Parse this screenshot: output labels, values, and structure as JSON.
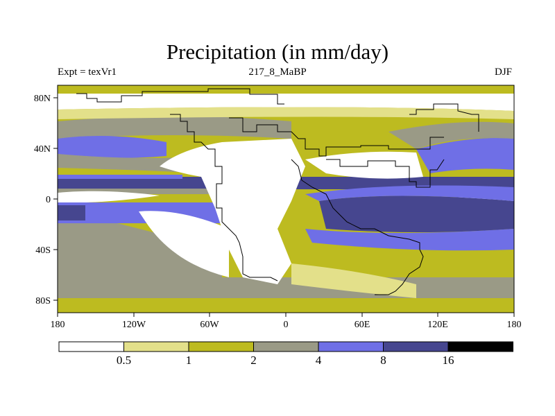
{
  "title": "Precipitation (in mm/day)",
  "subtitle_left": "Expt = texVr1",
  "subtitle_center": "217_8_MaBP",
  "subtitle_right": "DJF",
  "x_ticks": [
    "180",
    "120W",
    "60W",
    "0",
    "60E",
    "120E",
    "180"
  ],
  "y_ticks": [
    "80N",
    "40N",
    "0",
    "40S",
    "80S"
  ],
  "legend": {
    "colors": [
      "#ffffff",
      "#e3e08a",
      "#bdbb20",
      "#9a9a86",
      "#6f6fe6",
      "#46468f",
      "#000000"
    ],
    "labels": [
      "0.5",
      "1",
      "2",
      "4",
      "8",
      "16"
    ]
  },
  "palette": {
    "white": "#ffffff",
    "light": "#e3e08a",
    "olive": "#bdbb20",
    "gray": "#9a9a86",
    "blue": "#6f6fe6",
    "navy": "#46468f"
  }
}
